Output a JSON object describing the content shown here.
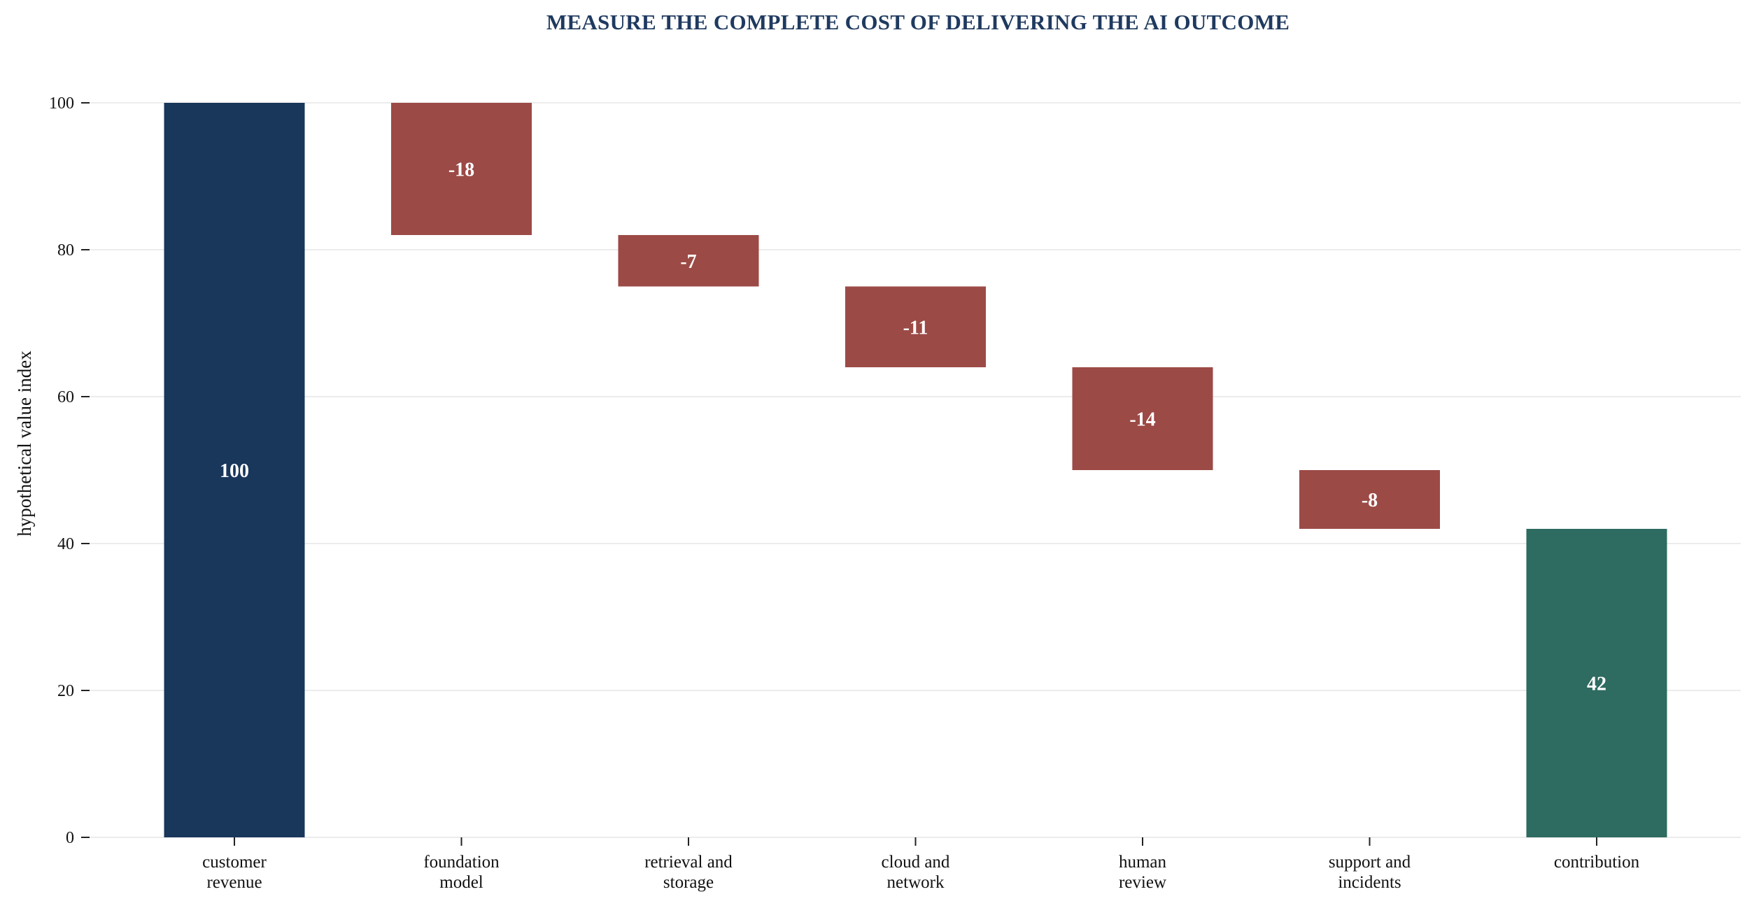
{
  "colors": {
    "start": "#19365b",
    "decrease": "#9c4a46",
    "total": "#2e6b60",
    "title": "#1f3a5f"
  },
  "chart_data": {
    "type": "bar",
    "subtype": "waterfall",
    "title": "MEASURE THE COMPLETE COST OF DELIVERING THE AI OUTCOME",
    "xlabel": "",
    "ylabel": "hypothetical value index",
    "ylim": [
      0,
      100
    ],
    "yticks": [
      0,
      20,
      40,
      60,
      80,
      100
    ],
    "grid": "horizontal",
    "categories": [
      [
        "customer",
        "revenue"
      ],
      [
        "foundation",
        "model"
      ],
      [
        "retrieval and",
        "storage"
      ],
      [
        "cloud and",
        "network"
      ],
      [
        "human",
        "review"
      ],
      [
        "support and",
        "incidents"
      ],
      [
        "contribution"
      ]
    ],
    "steps": [
      {
        "kind": "start",
        "value": 100,
        "label": "100"
      },
      {
        "kind": "decrease",
        "value": -18,
        "label": "-18"
      },
      {
        "kind": "decrease",
        "value": -7,
        "label": "-7"
      },
      {
        "kind": "decrease",
        "value": -11,
        "label": "-11"
      },
      {
        "kind": "decrease",
        "value": -14,
        "label": "-14"
      },
      {
        "kind": "decrease",
        "value": -8,
        "label": "-8"
      },
      {
        "kind": "total",
        "value": 42,
        "label": "42"
      }
    ]
  }
}
